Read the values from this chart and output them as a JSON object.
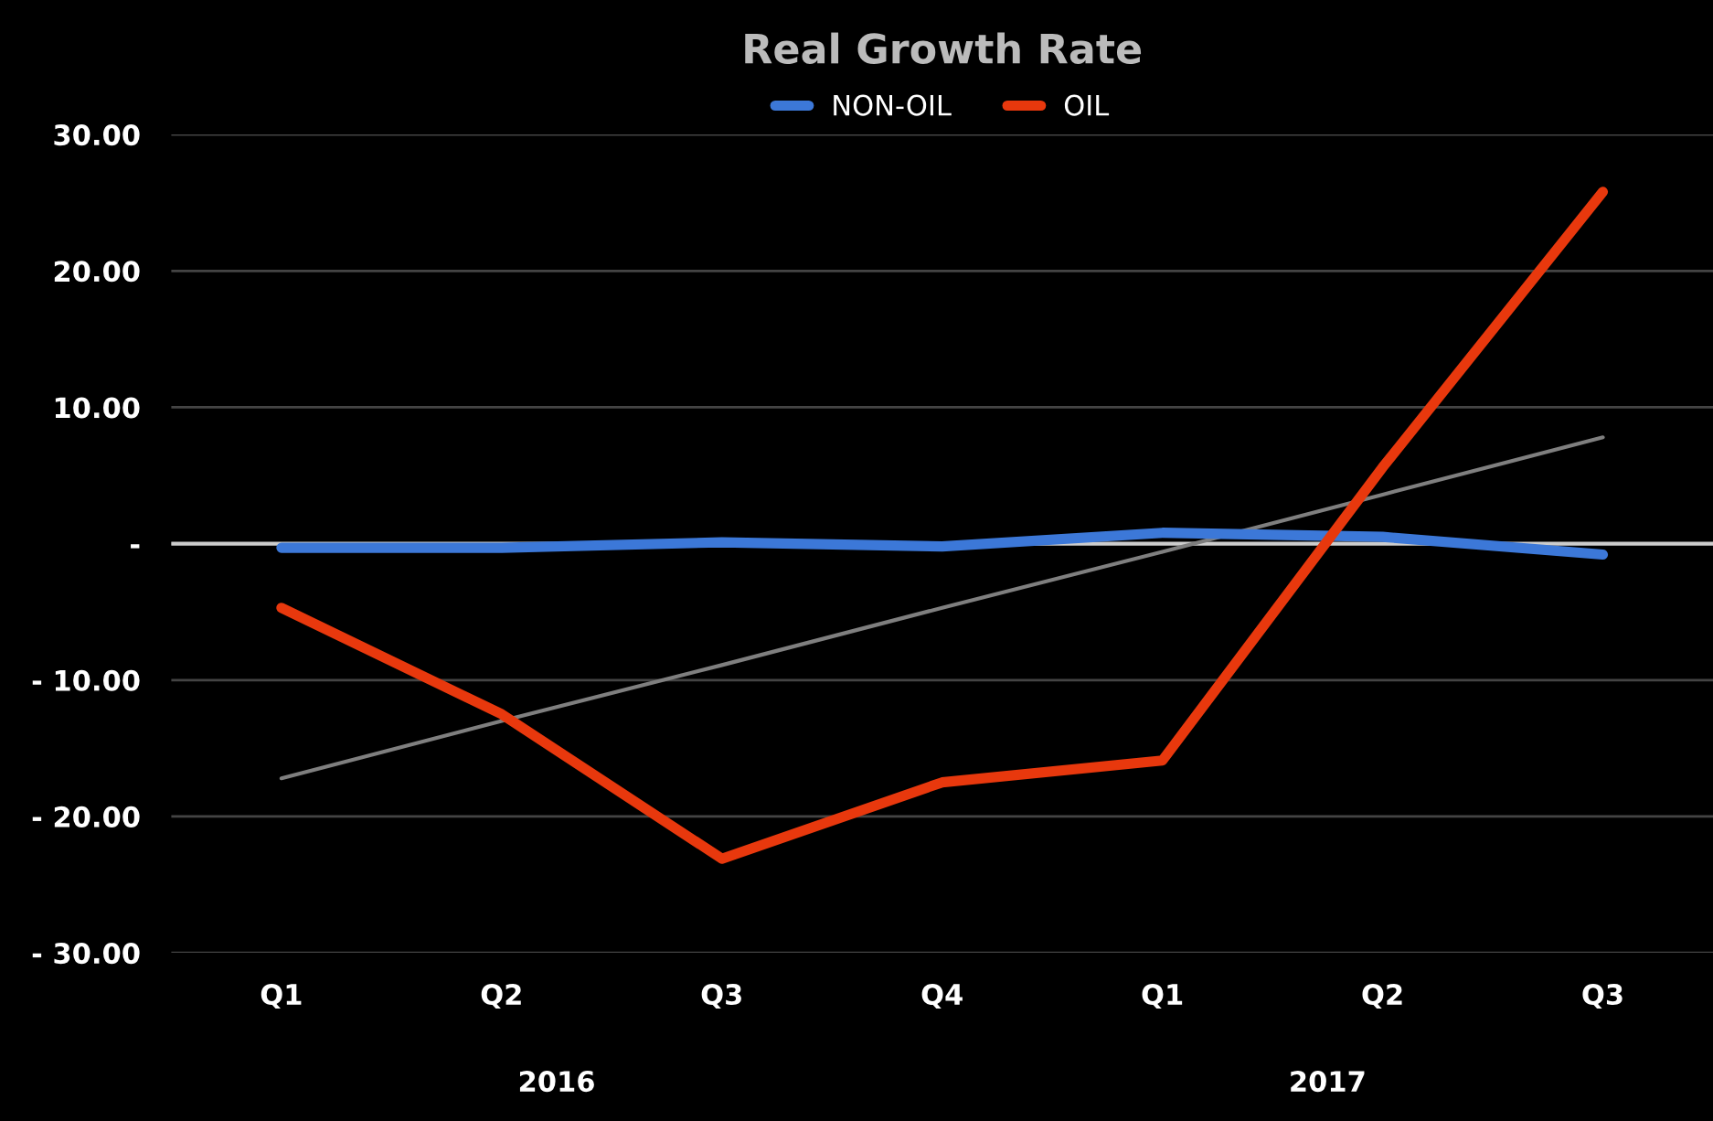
{
  "chart_data": {
    "type": "line",
    "title": "Real Growth Rate",
    "categories": [
      "Q1",
      "Q2",
      "Q3",
      "Q4",
      "Q1",
      "Q2",
      "Q3"
    ],
    "series": [
      {
        "name": "NON-OIL",
        "color": "#3c78d8",
        "values": [
          -0.3,
          -0.3,
          0.1,
          -0.2,
          0.8,
          0.5,
          -0.8
        ]
      },
      {
        "name": "OIL",
        "color": "#e8380d",
        "values": [
          -4.7,
          -12.5,
          -23.1,
          -17.5,
          -15.9,
          5.6,
          25.8
        ]
      },
      {
        "color": "#7f7f7f",
        "values": [
          -17.2,
          -13.0,
          -8.9,
          -4.7,
          -0.6,
          3.6,
          7.8
        ]
      }
    ],
    "ylim": [
      -30,
      30
    ],
    "yticks": [
      {
        "value": 30,
        "label": "30.00"
      },
      {
        "value": 20,
        "label": "20.00"
      },
      {
        "value": 10,
        "label": "10.00"
      },
      {
        "value": 0,
        "label": "-"
      },
      {
        "value": -10,
        "label": "- 10.00"
      },
      {
        "value": -20,
        "label": "- 20.00"
      },
      {
        "value": -30,
        "label": "- 30.00"
      }
    ],
    "annotations": [
      "2016",
      "2017"
    ],
    "grid": "y",
    "legend": "top",
    "line_style": "solid",
    "marker": "none"
  }
}
